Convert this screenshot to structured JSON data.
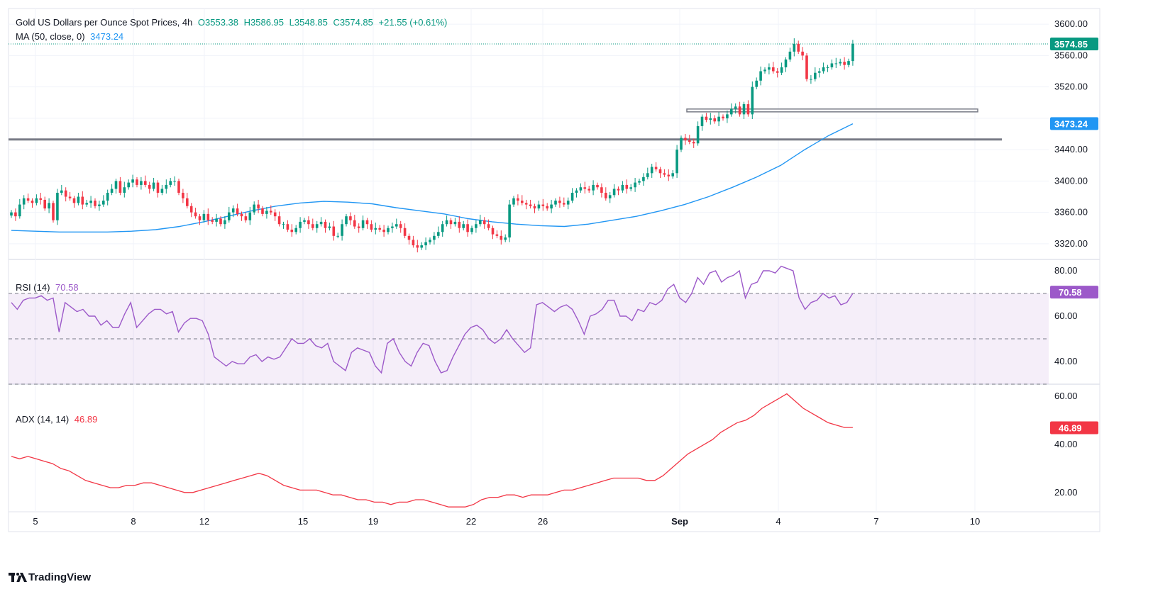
{
  "header": {
    "title": "Gold US Dollars per Ounce Spot Prices, 4h",
    "open": "O3553.38",
    "high": "H3586.95",
    "low": "L3548.85",
    "close": "C3574.85",
    "change": "+21.55 (+0.61%)",
    "ma_label": "MA (50, close, 0)",
    "ma_value": "3473.24"
  },
  "rsi_legend": {
    "label": "RSI (14)",
    "value": "70.58"
  },
  "adx_legend": {
    "label": "ADX (14, 14)",
    "value": "46.89"
  },
  "branding": {
    "name": "TradingView"
  },
  "colors": {
    "up": "#089981",
    "down": "#f23645",
    "ma": "#2196f3",
    "rsi": "#9c59c9",
    "adx": "#f23645",
    "level": "#787b86",
    "price_tag": "#089981"
  },
  "chart_data": [
    {
      "type": "candlestick",
      "title": "Gold US Dollars per Ounce Spot Prices, 4h",
      "x_ticks": [
        "5",
        "8",
        "12",
        "15",
        "19",
        "22",
        "26",
        "Sep",
        "4",
        "7",
        "10"
      ],
      "y_ticks": [
        "3600.00",
        "3560.00",
        "3520.00",
        "3440.00",
        "3400.00",
        "3360.00",
        "3320.00"
      ],
      "ylim": [
        3300,
        3620
      ],
      "price_tags": [
        {
          "label": "3574.85",
          "value": 3574.85
        },
        {
          "label": "3473.24",
          "value": 3473.24
        }
      ],
      "horizontal_levels": [
        3453,
        3490
      ],
      "closes": [
        3360,
        3355,
        3370,
        3378,
        3375,
        3372,
        3378,
        3376,
        3365,
        3372,
        3350,
        3385,
        3388,
        3380,
        3378,
        3372,
        3380,
        3370,
        3372,
        3375,
        3368,
        3370,
        3375,
        3385,
        3390,
        3400,
        3385,
        3392,
        3398,
        3402,
        3395,
        3400,
        3395,
        3390,
        3398,
        3385,
        3390,
        3395,
        3400,
        3400,
        3385,
        3378,
        3368,
        3360,
        3355,
        3350,
        3358,
        3350,
        3348,
        3352,
        3345,
        3350,
        3360,
        3365,
        3358,
        3355,
        3350,
        3360,
        3370,
        3365,
        3358,
        3362,
        3360,
        3355,
        3345,
        3345,
        3338,
        3335,
        3340,
        3348,
        3350,
        3345,
        3340,
        3345,
        3348,
        3340,
        3342,
        3330,
        3330,
        3345,
        3355,
        3350,
        3342,
        3340,
        3350,
        3345,
        3338,
        3340,
        3338,
        3335,
        3340,
        3342,
        3345,
        3340,
        3330,
        3325,
        3318,
        3315,
        3318,
        3322,
        3325,
        3330,
        3335,
        3345,
        3350,
        3345,
        3348,
        3340,
        3345,
        3335,
        3340,
        3345,
        3350,
        3345,
        3340,
        3332,
        3330,
        3325,
        3328,
        3370,
        3378,
        3375,
        3372,
        3370,
        3368,
        3365,
        3370,
        3368,
        3365,
        3370,
        3375,
        3372,
        3370,
        3375,
        3385,
        3388,
        3392,
        3390,
        3388,
        3395,
        3392,
        3385,
        3378,
        3382,
        3390,
        3388,
        3395,
        3390,
        3392,
        3398,
        3400,
        3405,
        3410,
        3418,
        3415,
        3410,
        3408,
        3406,
        3410,
        3440,
        3455,
        3452,
        3450,
        3448,
        3470,
        3482,
        3478,
        3480,
        3476,
        3482,
        3480,
        3485,
        3492,
        3495,
        3485,
        3498,
        3485,
        3520,
        3528,
        3540,
        3542,
        3545,
        3540,
        3538,
        3545,
        3555,
        3565,
        3575,
        3565,
        3560,
        3530,
        3530,
        3538,
        3540,
        3545,
        3545,
        3550,
        3550,
        3552,
        3548,
        3553,
        3575
      ],
      "ma_50": [
        3337,
        3336,
        3335,
        3335,
        3335,
        3336,
        3338,
        3342,
        3348,
        3355,
        3362,
        3368,
        3372,
        3374,
        3373,
        3371,
        3366,
        3362,
        3358,
        3352,
        3348,
        3345,
        3343,
        3342,
        3345,
        3350,
        3355,
        3362,
        3370,
        3380,
        3392,
        3405,
        3420,
        3440,
        3458,
        3473
      ]
    },
    {
      "type": "line",
      "title": "RSI (14)",
      "y_ticks": [
        "80.00",
        "60.00",
        "40.00"
      ],
      "ylim": [
        30,
        85
      ],
      "levels": [
        70,
        50,
        30
      ],
      "last_value": 70.58,
      "values": [
        66,
        63,
        67,
        68,
        68,
        69,
        67,
        68,
        53,
        66,
        64,
        62,
        63,
        60,
        60,
        56,
        58,
        55,
        55,
        61,
        66,
        55,
        58,
        61,
        63,
        63,
        61,
        62,
        53,
        57,
        59,
        59,
        58,
        52,
        42,
        40,
        38,
        40,
        39,
        39,
        42,
        43,
        40,
        42,
        41,
        42,
        46,
        50,
        48,
        48,
        50,
        47,
        46,
        48,
        40,
        38,
        36,
        44,
        46,
        45,
        44,
        38,
        35,
        48,
        50,
        44,
        40,
        38,
        44,
        48,
        47,
        40,
        35,
        36,
        42,
        47,
        52,
        55,
        56,
        54,
        50,
        48,
        50,
        54,
        50,
        47,
        44,
        46,
        65,
        66,
        64,
        62,
        64,
        65,
        63,
        58,
        52,
        60,
        61,
        63,
        67,
        67,
        60,
        60,
        58,
        63,
        62,
        66,
        65,
        67,
        72,
        74,
        68,
        66,
        70,
        77,
        74,
        79,
        80,
        75,
        77,
        78,
        80,
        68,
        74,
        75,
        80,
        80,
        79,
        82,
        81,
        80,
        68,
        63,
        66,
        67,
        70,
        68,
        69,
        65,
        66,
        70
      ]
    },
    {
      "type": "line",
      "title": "ADX (14, 14)",
      "y_ticks": [
        "60.00",
        "40.00",
        "20.00"
      ],
      "ylim": [
        12,
        65
      ],
      "last_value": 46.89,
      "values": [
        35,
        34,
        35,
        34,
        33,
        32,
        30,
        29,
        27,
        25,
        24,
        23,
        22,
        22,
        23,
        23,
        24,
        24,
        23,
        22,
        21,
        20,
        20,
        21,
        22,
        23,
        24,
        25,
        26,
        27,
        28,
        27,
        25,
        23,
        22,
        21,
        21,
        21,
        20,
        19,
        19,
        18,
        17,
        17,
        16,
        16,
        15,
        16,
        16,
        17,
        17,
        16,
        15,
        14,
        14,
        14,
        15,
        17,
        18,
        18,
        19,
        19,
        18,
        19,
        19,
        19,
        20,
        21,
        21,
        22,
        23,
        24,
        25,
        26,
        26,
        26,
        26,
        25,
        25,
        27,
        30,
        33,
        36,
        38,
        40,
        42,
        45,
        47,
        49,
        50,
        52,
        55,
        57,
        59,
        61,
        58,
        55,
        53,
        51,
        49,
        48,
        47,
        47
      ]
    }
  ]
}
